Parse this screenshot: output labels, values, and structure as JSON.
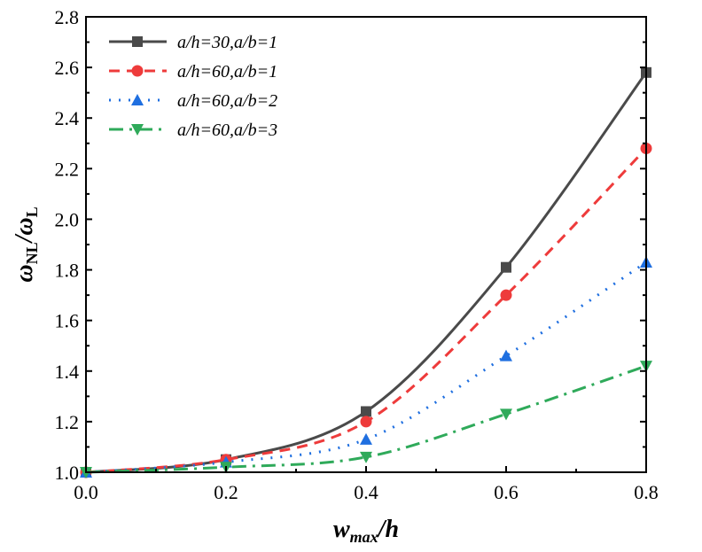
{
  "chart_data": {
    "type": "line",
    "title": "",
    "xlabel": {
      "main": "w",
      "sub": "max",
      "rest": "/h"
    },
    "ylabel": {
      "a": "ω",
      "asub": "NL",
      "slash": "/",
      "b": "ω",
      "bsub": "L"
    },
    "xlim": [
      0,
      0.8
    ],
    "ylim": [
      1.0,
      2.8
    ],
    "xticks": [
      "0.0",
      "0.2",
      "0.4",
      "0.6",
      "0.8"
    ],
    "xtick_values": [
      0,
      0.2,
      0.4,
      0.6,
      0.8
    ],
    "yticks": [
      "1.0",
      "1.2",
      "1.4",
      "1.6",
      "1.8",
      "2.0",
      "2.2",
      "2.4",
      "2.6",
      "2.8"
    ],
    "ytick_values": [
      1.0,
      1.2,
      1.4,
      1.6,
      1.8,
      2.0,
      2.2,
      2.4,
      2.6,
      2.8
    ],
    "grid": false,
    "legend_position": "top-left",
    "x": [
      0,
      0.2,
      0.4,
      0.6,
      0.8
    ],
    "series": [
      {
        "name": "a/h=30,a/b=1",
        "color": "#4a4a4a",
        "marker": "square",
        "dash": "",
        "values": [
          1.0,
          1.05,
          1.24,
          1.81,
          2.58
        ]
      },
      {
        "name": "a/h=60,a/b=1",
        "color": "#ee3b3b",
        "marker": "circle",
        "dash": "12,8",
        "values": [
          1.0,
          1.05,
          1.2,
          1.7,
          2.28
        ]
      },
      {
        "name": "a/h=60,a/b=2",
        "color": "#1f6fe0",
        "marker": "triangle-up",
        "dash": "2,9",
        "values": [
          1.0,
          1.04,
          1.13,
          1.46,
          1.83
        ]
      },
      {
        "name": "a/h=60,a/b=3",
        "color": "#2faa5a",
        "marker": "triangle-down",
        "dash": "16,7,3,7",
        "values": [
          1.0,
          1.02,
          1.06,
          1.23,
          1.42
        ]
      }
    ]
  }
}
